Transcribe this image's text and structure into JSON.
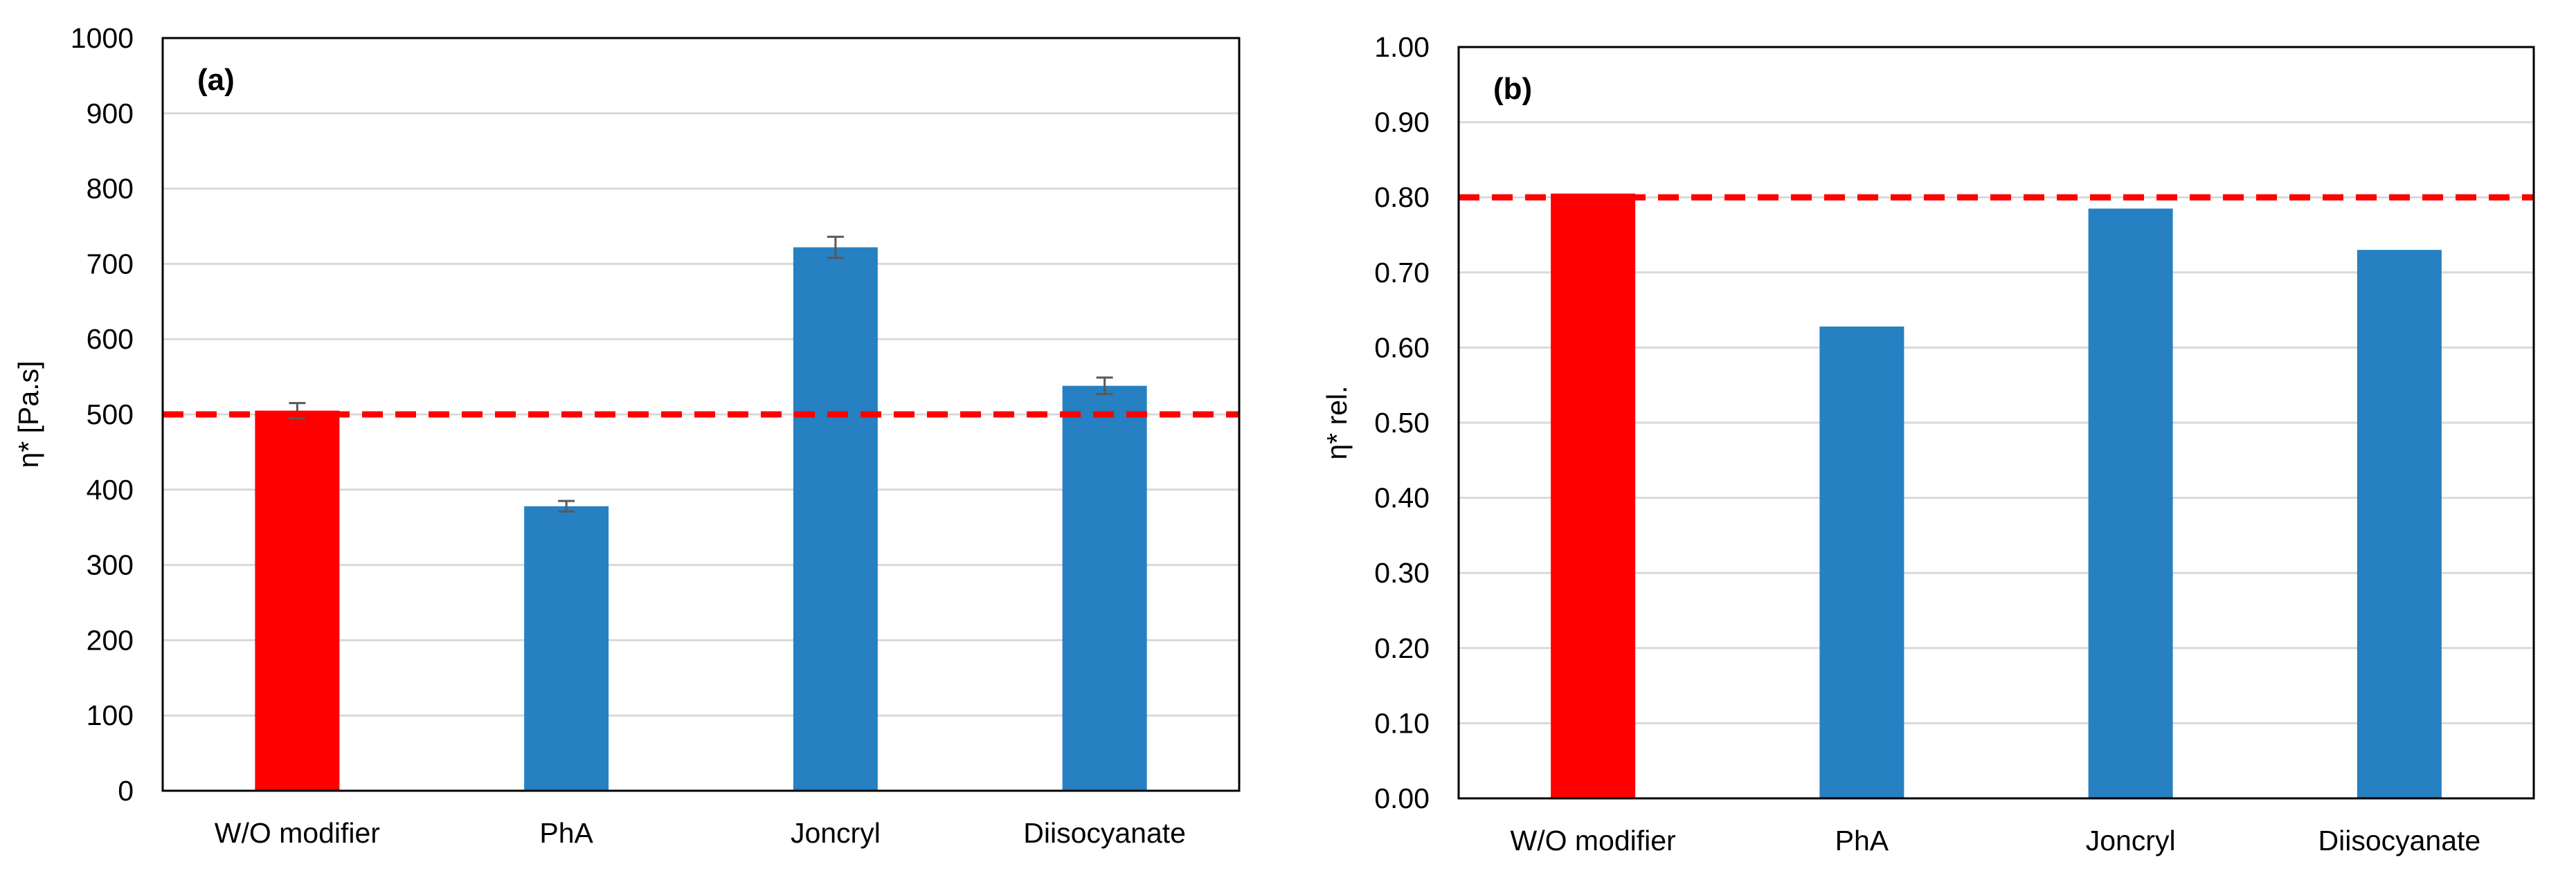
{
  "chart_data": [
    {
      "type": "bar",
      "panel_label": "(a)",
      "title": "",
      "xlabel": "",
      "ylabel": "η* [Pa.s]",
      "ylim": [
        0,
        1000
      ],
      "yticks": [
        0,
        100,
        200,
        300,
        400,
        500,
        600,
        700,
        800,
        900,
        1000
      ],
      "ytick_labels": [
        "0",
        "100",
        "200",
        "300",
        "400",
        "500",
        "600",
        "700",
        "800",
        "900",
        "1000"
      ],
      "categories": [
        "W/O modifier",
        "PhA",
        "Joncryl",
        "Diisocyanate"
      ],
      "values": [
        505,
        378,
        722,
        538
      ],
      "errors": [
        10,
        7,
        14,
        11
      ],
      "bar_colors": [
        "#ff0000",
        "#2680c2",
        "#2680c2",
        "#2680c2"
      ],
      "reference_line": {
        "value": 500,
        "color": "#ff0000",
        "style": "dashed"
      },
      "grid": true
    },
    {
      "type": "bar",
      "panel_label": "(b)",
      "title": "",
      "xlabel": "",
      "ylabel": "η* rel.",
      "ylim": [
        0,
        1
      ],
      "yticks": [
        0,
        0.1,
        0.2,
        0.3,
        0.4,
        0.5,
        0.6,
        0.7,
        0.8,
        0.9,
        1.0
      ],
      "ytick_labels": [
        "0.00",
        "0.10",
        "0.20",
        "0.30",
        "0.40",
        "0.50",
        "0.60",
        "0.70",
        "0.80",
        "0.90",
        "1.00"
      ],
      "categories": [
        "W/O modifier",
        "PhA",
        "Joncryl",
        "Diisocyanate"
      ],
      "values": [
        0.805,
        0.628,
        0.785,
        0.73
      ],
      "errors": [],
      "bar_colors": [
        "#ff0000",
        "#2680c2",
        "#2680c2",
        "#2680c2"
      ],
      "reference_line": {
        "value": 0.8,
        "color": "#ff0000",
        "style": "dashed"
      },
      "grid": true
    }
  ]
}
